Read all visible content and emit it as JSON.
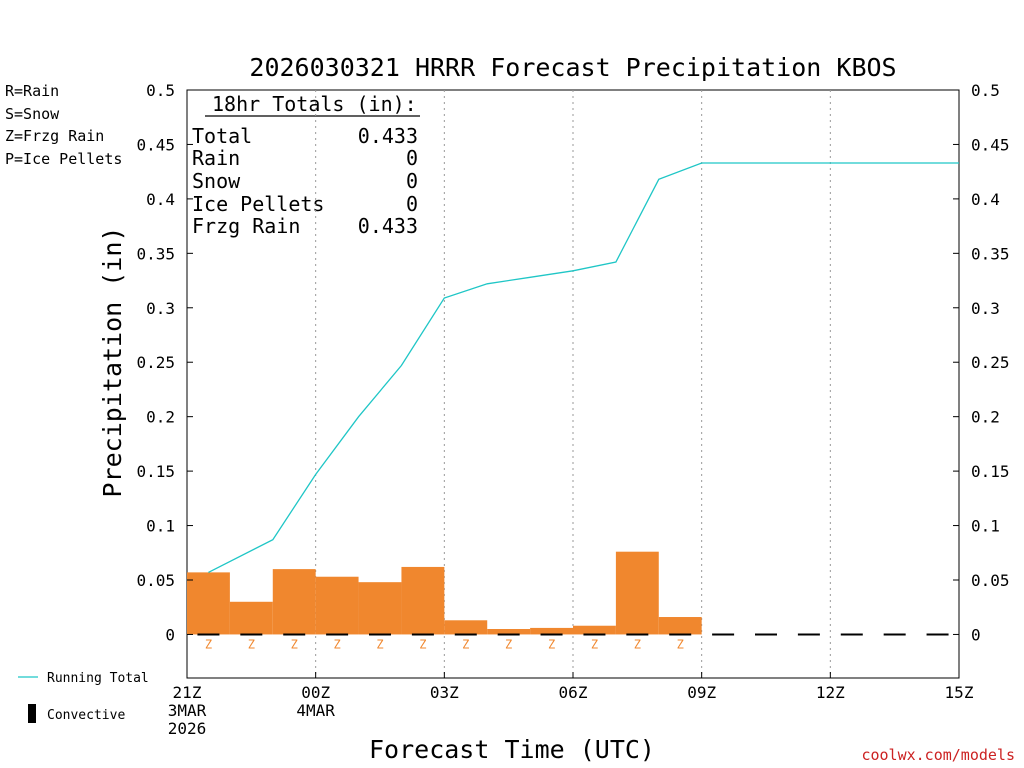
{
  "chart_data": {
    "type": "bar",
    "title": "2026030321 HRRR Forecast Precipitation KBOS",
    "ylabel": "Precipitation (in)",
    "xlabel": "Forecast Time (UTC)",
    "ylim": [
      -0.04,
      0.5
    ],
    "y_ticks": [
      {
        "v": 0.5,
        "label": "0.5"
      },
      {
        "v": 0.45,
        "label": "0.45"
      },
      {
        "v": 0.4,
        "label": "0.4"
      },
      {
        "v": 0.35,
        "label": "0.35"
      },
      {
        "v": 0.3,
        "label": "0.3"
      },
      {
        "v": 0.25,
        "label": "0.25"
      },
      {
        "v": 0.2,
        "label": "0.2"
      },
      {
        "v": 0.15,
        "label": "0.15"
      },
      {
        "v": 0.1,
        "label": "0.1"
      },
      {
        "v": 0.05,
        "label": "0.05"
      },
      {
        "v": 0,
        "label": "0"
      }
    ],
    "x_range": [
      0,
      18
    ],
    "x_ticks": [
      {
        "h": 0,
        "lines": [
          "21Z",
          "3MAR",
          "2026"
        ]
      },
      {
        "h": 3,
        "lines": [
          "00Z",
          "4MAR"
        ]
      },
      {
        "h": 6,
        "lines": [
          "03Z"
        ]
      },
      {
        "h": 9,
        "lines": [
          "06Z"
        ]
      },
      {
        "h": 12,
        "lines": [
          "09Z"
        ]
      },
      {
        "h": 15,
        "lines": [
          "12Z"
        ]
      },
      {
        "h": 18,
        "lines": [
          "15Z"
        ]
      }
    ],
    "grid_hours": [
      3,
      6,
      9,
      12,
      15
    ],
    "bars": [
      {
        "h": 1,
        "value": 0.057,
        "ptype": "Z"
      },
      {
        "h": 2,
        "value": 0.03,
        "ptype": "Z"
      },
      {
        "h": 3,
        "value": 0.06,
        "ptype": "Z"
      },
      {
        "h": 4,
        "value": 0.053,
        "ptype": "Z"
      },
      {
        "h": 5,
        "value": 0.048,
        "ptype": "Z"
      },
      {
        "h": 6,
        "value": 0.062,
        "ptype": "Z"
      },
      {
        "h": 7,
        "value": 0.013,
        "ptype": "Z"
      },
      {
        "h": 8,
        "value": 0.005,
        "ptype": "Z"
      },
      {
        "h": 9,
        "value": 0.006,
        "ptype": "Z"
      },
      {
        "h": 10,
        "value": 0.008,
        "ptype": "Z"
      },
      {
        "h": 11,
        "value": 0.076,
        "ptype": "Z"
      },
      {
        "h": 12,
        "value": 0.016,
        "ptype": "Z"
      }
    ],
    "running_total": {
      "x": [
        1,
        2,
        3,
        4,
        5,
        6,
        7,
        8,
        9,
        10,
        11,
        12,
        13,
        14,
        15,
        16,
        17,
        18
      ],
      "values": [
        0.057,
        0.087,
        0.147,
        0.2,
        0.247,
        0.309,
        0.322,
        0.328,
        0.334,
        0.342,
        0.418,
        0.433,
        0.433,
        0.433,
        0.433,
        0.433,
        0.433,
        0.433
      ]
    },
    "convective_zero_hours": [
      1,
      2,
      3,
      4,
      5,
      6,
      7,
      8,
      9,
      10,
      11,
      12,
      13,
      14,
      15,
      16,
      17,
      18
    ],
    "totals_box": {
      "heading": "18hr Totals (in):",
      "rows": [
        {
          "label": "Total",
          "value": "0.433"
        },
        {
          "label": "Rain",
          "value": "0"
        },
        {
          "label": "Snow",
          "value": "0"
        },
        {
          "label": "Ice Pellets",
          "value": "0"
        },
        {
          "label": "Frzg Rain",
          "value": "0.433"
        }
      ]
    },
    "ptype_legend": [
      {
        "text": "R=Rain",
        "color": "#22cc22"
      },
      {
        "text": "S=Snow",
        "color": "#3344ee"
      },
      {
        "text": "Z=Frzg Rain",
        "color": "#f0872e"
      },
      {
        "text": "P=Ice Pellets",
        "color": "#ee1188"
      }
    ],
    "series_legend": {
      "running_total": "Running Total",
      "convective": "Convective"
    },
    "colors": {
      "bar": "#f0872e",
      "line": "#1fc6c6",
      "zlabel": "#f0872e",
      "watermark": "#cc2222"
    },
    "watermark": "coolwx.com/models"
  }
}
